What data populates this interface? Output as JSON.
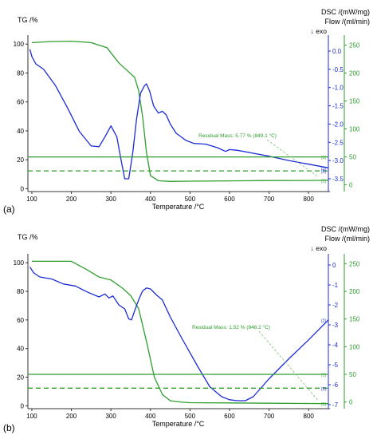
{
  "chart_data": [
    {
      "type": "line",
      "panel_label": "(a)",
      "xlabel": "Temperature /°C",
      "xlim": [
        90,
        850
      ],
      "xticks": [
        100,
        200,
        300,
        400,
        500,
        600,
        700,
        800
      ],
      "axes": {
        "tg": {
          "label": "TG /%",
          "range": [
            -2,
            104
          ],
          "ticks": [
            0,
            20,
            40,
            60,
            80,
            100
          ]
        },
        "dsc": {
          "label": "DSC /(mW/mg)",
          "exo_label": "↓ exo",
          "range": [
            -3.85,
            0.35
          ],
          "ticks": [
            0.0,
            -0.5,
            -1.0,
            -1.5,
            -2.0,
            -2.5,
            -3.0,
            -3.5
          ]
        },
        "flow": {
          "label": "Flow /(ml/min)",
          "range": [
            -12,
            262
          ],
          "ticks": [
            0,
            50,
            100,
            150,
            200,
            250
          ]
        }
      },
      "series": [
        {
          "axis": "tg",
          "color": "#2e9e2e",
          "x": [
            100,
            150,
            200,
            250,
            290,
            320,
            340,
            360,
            370,
            380,
            390,
            400,
            420,
            450,
            500,
            600,
            700,
            800,
            850
          ],
          "y": [
            101,
            101.8,
            102,
            101,
            97.5,
            87,
            82,
            77,
            68,
            50,
            25,
            9,
            5.5,
            5,
            5.2,
            5.4,
            5.6,
            5.7,
            5.77
          ]
        },
        {
          "axis": "dsc",
          "color": "#1c2bd6",
          "x": [
            95,
            100,
            110,
            130,
            160,
            190,
            220,
            250,
            270,
            285,
            300,
            315,
            325,
            335,
            345,
            355,
            365,
            375,
            385,
            390,
            398,
            408,
            420,
            430,
            440,
            450,
            465,
            490,
            510,
            540,
            570,
            590,
            600,
            620,
            660,
            700,
            750,
            800,
            850
          ],
          "y": [
            0.05,
            -0.15,
            -0.35,
            -0.5,
            -0.95,
            -1.55,
            -2.2,
            -2.6,
            -2.62,
            -2.35,
            -2.05,
            -2.35,
            -2.95,
            -3.5,
            -3.5,
            -2.8,
            -1.85,
            -1.15,
            -0.95,
            -0.9,
            -1.1,
            -1.5,
            -1.7,
            -1.65,
            -1.75,
            -2.0,
            -2.25,
            -2.45,
            -2.53,
            -2.55,
            -2.65,
            -2.75,
            -2.7,
            -2.72,
            -2.8,
            -2.88,
            -3.0,
            -3.1,
            -3.2
          ]
        },
        {
          "axis": "flow",
          "color": "#2e9e2e",
          "x": [
            90,
            850
          ],
          "y": [
            50,
            50
          ],
          "dash": false
        },
        {
          "axis": "flow",
          "color": "#2e9e2e",
          "x": [
            90,
            850
          ],
          "y": [
            25,
            25
          ],
          "dash": true
        }
      ],
      "annotation": {
        "text": "Residual Mass: 5.77 % (849.1 °C)",
        "x": 849.1,
        "y": 5.77
      },
      "curve_markers": [
        "[1]",
        "[3]",
        "[1]"
      ]
    },
    {
      "type": "line",
      "panel_label": "(b)",
      "xlabel": "Temperature /°C",
      "xlim": [
        90,
        850
      ],
      "xticks": [
        100,
        200,
        300,
        400,
        500,
        600,
        700,
        800
      ],
      "axes": {
        "tg": {
          "label": "TG /%",
          "range": [
            -2,
            104
          ],
          "ticks": [
            0,
            20,
            40,
            60,
            80,
            100
          ]
        },
        "dsc": {
          "label": "DSC /(mW/mg)",
          "exo_label": "↓ exo",
          "range": [
            -7.2,
            0.4
          ],
          "ticks": [
            0,
            -1,
            -2,
            -3,
            -4,
            -5,
            -6,
            -7
          ]
        },
        "flow": {
          "label": "Flow /(ml/min)",
          "range": [
            -12,
            262
          ],
          "ticks": [
            0,
            50,
            100,
            150,
            200,
            250
          ]
        }
      },
      "series": [
        {
          "axis": "tg",
          "color": "#2e9e2e",
          "x": [
            100,
            150,
            200,
            240,
            270,
            300,
            330,
            350,
            370,
            390,
            410,
            430,
            450,
            480,
            500,
            600,
            700,
            800,
            850
          ],
          "y": [
            101,
            101,
            101,
            95,
            90,
            88,
            82,
            77,
            68,
            45,
            20,
            8,
            3.5,
            2.5,
            2.2,
            2,
            1.8,
            1.6,
            1.52
          ]
        },
        {
          "axis": "dsc",
          "color": "#1c2bd6",
          "x": [
            95,
            105,
            120,
            150,
            180,
            210,
            240,
            270,
            285,
            295,
            305,
            320,
            335,
            345,
            352,
            360,
            370,
            380,
            390,
            400,
            415,
            430,
            450,
            480,
            520,
            550,
            580,
            600,
            620,
            640,
            660,
            700,
            750,
            800,
            850
          ],
          "y": [
            -0.1,
            -0.4,
            -0.6,
            -0.7,
            -0.95,
            -1.05,
            -1.35,
            -1.6,
            -1.45,
            -1.65,
            -1.55,
            -2.0,
            -2.2,
            -2.7,
            -2.75,
            -2.3,
            -1.75,
            -1.3,
            -1.15,
            -1.2,
            -1.5,
            -1.75,
            -2.6,
            -3.7,
            -5.1,
            -6.1,
            -6.6,
            -6.75,
            -6.8,
            -6.8,
            -6.6,
            -5.7,
            -4.7,
            -3.75,
            -2.75
          ]
        },
        {
          "axis": "flow",
          "color": "#2e9e2e",
          "x": [
            90,
            850
          ],
          "y": [
            50,
            50
          ],
          "dash": false
        },
        {
          "axis": "flow",
          "color": "#2e9e2e",
          "x": [
            90,
            850
          ],
          "y": [
            25,
            25
          ],
          "dash": true
        }
      ],
      "annotation": {
        "text": "Residual Mass: 1.52 % (848.2 °C)",
        "x": 848.2,
        "y": 1.52
      },
      "curve_markers": [
        "[1]",
        "[3]",
        "[1]"
      ]
    }
  ]
}
